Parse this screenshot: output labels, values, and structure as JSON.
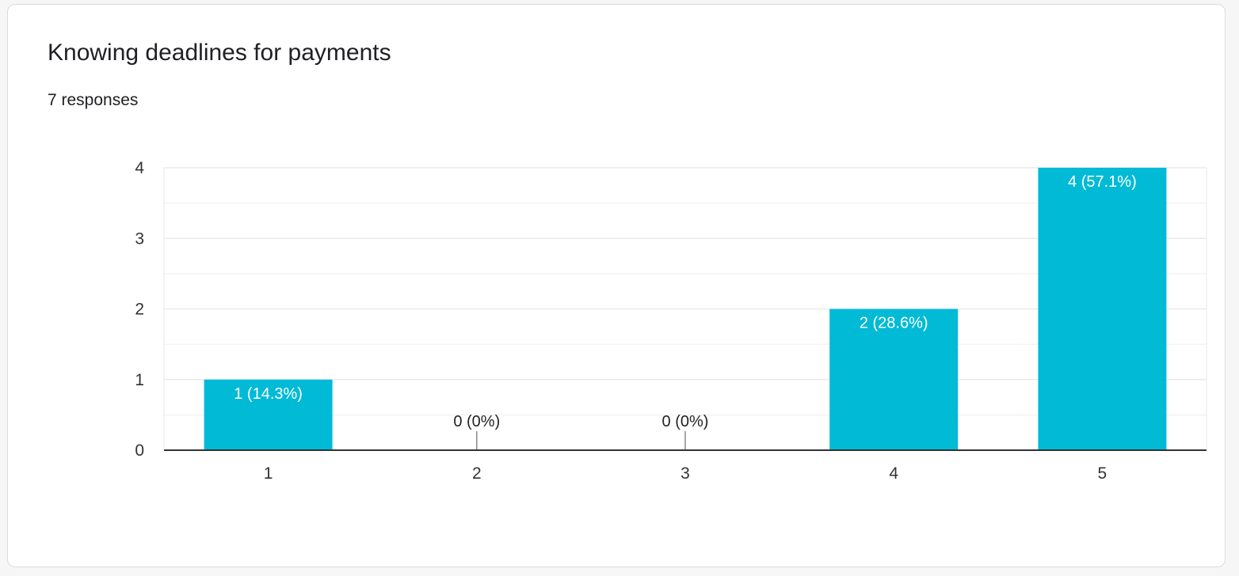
{
  "question": {
    "title": "Knowing deadlines for payments",
    "response_count_label": "7 responses"
  },
  "chart_data": {
    "type": "bar",
    "title": "Knowing deadlines for payments",
    "xlabel": "",
    "ylabel": "",
    "categories": [
      "1",
      "2",
      "3",
      "4",
      "5"
    ],
    "values": [
      1,
      0,
      0,
      2,
      4
    ],
    "data_labels": [
      "1 (14.3%)",
      "0 (0%)",
      "0 (0%)",
      "2 (28.6%)",
      "4 (57.1%)"
    ],
    "yticks": [
      0,
      1,
      2,
      3,
      4
    ],
    "ylim": [
      0,
      4
    ],
    "grid": true,
    "legend": "none",
    "colors": {
      "bar": "#00bad6",
      "grid": "#e8e8e8",
      "axis": "#333333",
      "label_inside": "#ffffff",
      "label_outside": "#222222"
    }
  }
}
